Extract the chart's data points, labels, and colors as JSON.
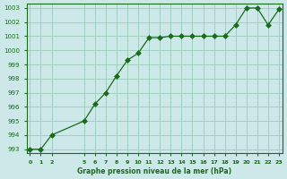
{
  "x": [
    0,
    1,
    2,
    5,
    6,
    7,
    8,
    9,
    10,
    11,
    12,
    13,
    14,
    15,
    16,
    17,
    18,
    19,
    20,
    21,
    22,
    23
  ],
  "y": [
    993.0,
    993.0,
    994.0,
    995.0,
    996.2,
    997.0,
    998.2,
    999.3,
    999.8,
    1000.9,
    1000.9,
    1001.0,
    1001.0,
    1001.0,
    1001.0,
    1001.0,
    1001.0,
    1001.8,
    1003.0,
    1003.0,
    1001.8,
    1002.9
  ],
  "xlim_min": -0.3,
  "xlim_max": 23.3,
  "ylim_min": 992.7,
  "ylim_max": 1003.3,
  "xticks": [
    0,
    1,
    2,
    5,
    6,
    7,
    8,
    9,
    10,
    11,
    12,
    13,
    14,
    15,
    16,
    17,
    18,
    19,
    20,
    21,
    22,
    23
  ],
  "yticks": [
    993,
    994,
    995,
    996,
    997,
    998,
    999,
    1000,
    1001,
    1002,
    1003
  ],
  "line_color": "#1a6b1a",
  "marker": "D",
  "marker_size": 3,
  "bg_color": "#cce8e8",
  "grid_color": "#99ccbb",
  "xlabel": "Graphe pression niveau de la mer (hPa)",
  "xlabel_color": "#1a6b1a",
  "tick_color": "#1a6b1a",
  "spine_color": "#1a6b1a",
  "tick_fontsize": 4.5,
  "xlabel_fontsize": 5.5
}
